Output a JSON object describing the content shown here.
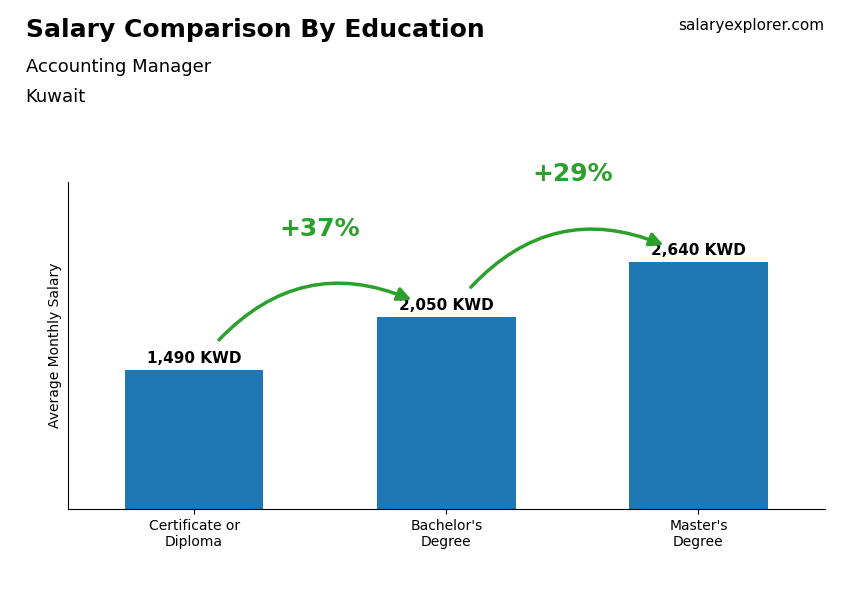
{
  "chart_data": {
    "type": "bar",
    "title": "Salary Comparison By Education",
    "subtitle": [
      "Accounting Manager",
      "Kuwait"
    ],
    "source": "salaryexplorer.com",
    "categories": [
      "Certificate or\nDiploma",
      "Bachelor's\nDegree",
      "Master's\nDegree"
    ],
    "values": [
      1490,
      2050,
      2640
    ],
    "value_labels": [
      "1,490 KWD",
      "2,050 KWD",
      "2,640 KWD"
    ],
    "data_labels": true,
    "annotations": [
      "+37%",
      "+29%"
    ],
    "ylabel": "Average Monthly Salary",
    "ylim": [
      0,
      3500
    ],
    "tick_labels": "x",
    "grid": false
  }
}
